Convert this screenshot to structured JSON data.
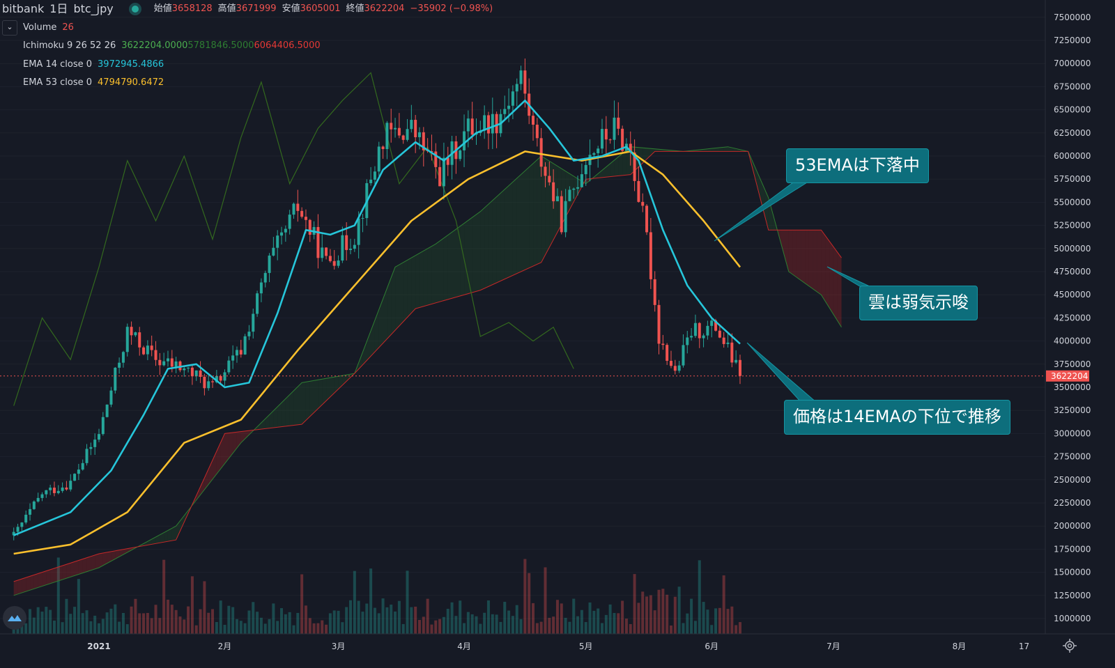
{
  "header": {
    "exchange": "bitbank",
    "interval": "1日",
    "pair": "btc_jpy",
    "ohlc": [
      {
        "label": "始値",
        "value": "3658128"
      },
      {
        "label": "高値",
        "value": "3671999"
      },
      {
        "label": "安値",
        "value": "3605001"
      },
      {
        "label": "終値",
        "value": "3622204"
      }
    ],
    "change": "−35902 (−0.98%)"
  },
  "indicators": [
    {
      "name": "Volume",
      "values": [
        {
          "text": "26",
          "color": "#ef5350"
        }
      ]
    },
    {
      "name": "Ichimoku 9 26 52 26",
      "values": [
        {
          "text": "3622204.0000",
          "color": "#4caf50"
        },
        {
          "text": "5781846.5000",
          "color": "#2e7d32"
        },
        {
          "text": "6064406.5000",
          "color": "#e53935"
        }
      ]
    },
    {
      "name": "EMA 14 close 0",
      "values": [
        {
          "text": "3972945.4866",
          "color": "#26c6da"
        }
      ]
    },
    {
      "name": "EMA 53 close 0",
      "values": [
        {
          "text": "4794790.6472",
          "color": "#fbc02d"
        }
      ]
    }
  ],
  "annotations": [
    {
      "text": "53EMAは下落中"
    },
    {
      "text": "雲は弱気示唆"
    },
    {
      "text": "価格は14EMAの下位で推移"
    }
  ],
  "price_label": "3622204",
  "colors": {
    "background": "#161a25",
    "up": "#26a69a",
    "down": "#ef5350",
    "ema14": "#26c6da",
    "ema53": "#fbc02d",
    "senkou_a": "#2e7d32",
    "senkou_b": "#c62828",
    "chikou": "#33691e",
    "callout": "#0d6e7c"
  },
  "chart_data": {
    "type": "candlestick",
    "title": "",
    "ylim": [
      750000,
      7650000
    ],
    "y_ticks": [
      1000000,
      1250000,
      1500000,
      1750000,
      2000000,
      2250000,
      2500000,
      2750000,
      3000000,
      3250000,
      3500000,
      3750000,
      4000000,
      4250000,
      4500000,
      4750000,
      5000000,
      5250000,
      5500000,
      5750000,
      6000000,
      6250000,
      6500000,
      6750000,
      7000000,
      7250000,
      7500000
    ],
    "x_ticks": [
      {
        "label": "2021",
        "date": "2021-01-01"
      },
      {
        "label": "2月",
        "date": "2021-02-01"
      },
      {
        "label": "3月",
        "date": "2021-03-01"
      },
      {
        "label": "4月",
        "date": "2021-04-01"
      },
      {
        "label": "5月",
        "date": "2021-05-01"
      },
      {
        "label": "6月",
        "date": "2021-06-01"
      },
      {
        "label": "7月",
        "date": "2021-07-01"
      },
      {
        "label": "8月",
        "date": "2021-08-01"
      },
      {
        "label": "17",
        "date": "2021-08-17"
      }
    ],
    "x_range": [
      "2020-12-11",
      "2021-08-22"
    ],
    "last_date": "2021-06-08",
    "last_price": 3622204,
    "ohlc_weekly_anchors": [
      {
        "date": "2020-12-11",
        "close": 1900000
      },
      {
        "date": "2020-12-18",
        "close": 2350000
      },
      {
        "date": "2020-12-25",
        "close": 2470000
      },
      {
        "date": "2021-01-01",
        "close": 3000000
      },
      {
        "date": "2021-01-08",
        "close": 4100000
      },
      {
        "date": "2021-01-15",
        "close": 3800000
      },
      {
        "date": "2021-01-22",
        "close": 3700000
      },
      {
        "date": "2021-01-29",
        "close": 3500000
      },
      {
        "date": "2021-02-05",
        "close": 3900000
      },
      {
        "date": "2021-02-12",
        "close": 4850000
      },
      {
        "date": "2021-02-19",
        "close": 5450000
      },
      {
        "date": "2021-02-26",
        "close": 4850000
      },
      {
        "date": "2021-03-05",
        "close": 5150000
      },
      {
        "date": "2021-03-12",
        "close": 6200000
      },
      {
        "date": "2021-03-19",
        "close": 6300000
      },
      {
        "date": "2021-03-26",
        "close": 5800000
      },
      {
        "date": "2021-04-02",
        "close": 6300000
      },
      {
        "date": "2021-04-09",
        "close": 6400000
      },
      {
        "date": "2021-04-15",
        "close": 6850000
      },
      {
        "date": "2021-04-19",
        "close": 6100000
      },
      {
        "date": "2021-04-25",
        "close": 5300000
      },
      {
        "date": "2021-05-01",
        "close": 6000000
      },
      {
        "date": "2021-05-08",
        "close": 6300000
      },
      {
        "date": "2021-05-12",
        "close": 6050000
      },
      {
        "date": "2021-05-16",
        "close": 5100000
      },
      {
        "date": "2021-05-19",
        "close": 4050000
      },
      {
        "date": "2021-05-23",
        "close": 3650000
      },
      {
        "date": "2021-05-27",
        "close": 4100000
      },
      {
        "date": "2021-06-02",
        "close": 4150000
      },
      {
        "date": "2021-06-05",
        "close": 3900000
      },
      {
        "date": "2021-06-08",
        "close": 3622204
      }
    ],
    "series": [
      {
        "name": "EMA 14 close 0",
        "points": [
          [
            "2020-12-11",
            1900000
          ],
          [
            "2020-12-25",
            2150000
          ],
          [
            "2021-01-04",
            2600000
          ],
          [
            "2021-01-12",
            3200000
          ],
          [
            "2021-01-18",
            3700000
          ],
          [
            "2021-01-25",
            3750000
          ],
          [
            "2021-02-01",
            3500000
          ],
          [
            "2021-02-07",
            3550000
          ],
          [
            "2021-02-14",
            4300000
          ],
          [
            "2021-02-21",
            5200000
          ],
          [
            "2021-02-27",
            5150000
          ],
          [
            "2021-03-05",
            5250000
          ],
          [
            "2021-03-12",
            5850000
          ],
          [
            "2021-03-20",
            6150000
          ],
          [
            "2021-03-27",
            5950000
          ],
          [
            "2021-04-04",
            6250000
          ],
          [
            "2021-04-10",
            6350000
          ],
          [
            "2021-04-16",
            6600000
          ],
          [
            "2021-04-22",
            6300000
          ],
          [
            "2021-04-28",
            5950000
          ],
          [
            "2021-05-05",
            6000000
          ],
          [
            "2021-05-11",
            6100000
          ],
          [
            "2021-05-14",
            5950000
          ],
          [
            "2021-05-20",
            5200000
          ],
          [
            "2021-05-26",
            4600000
          ],
          [
            "2021-06-01",
            4250000
          ],
          [
            "2021-06-08",
            3970000
          ]
        ]
      },
      {
        "name": "EMA 53 close 0",
        "points": [
          [
            "2020-12-11",
            1700000
          ],
          [
            "2020-12-25",
            1800000
          ],
          [
            "2021-01-08",
            2150000
          ],
          [
            "2021-01-22",
            2900000
          ],
          [
            "2021-02-05",
            3150000
          ],
          [
            "2021-02-19",
            3900000
          ],
          [
            "2021-03-05",
            4600000
          ],
          [
            "2021-03-19",
            5300000
          ],
          [
            "2021-04-02",
            5750000
          ],
          [
            "2021-04-16",
            6050000
          ],
          [
            "2021-04-30",
            5950000
          ],
          [
            "2021-05-12",
            6050000
          ],
          [
            "2021-05-20",
            5800000
          ],
          [
            "2021-05-30",
            5300000
          ],
          [
            "2021-06-08",
            4800000
          ]
        ]
      },
      {
        "name": "Senkou A",
        "points": [
          [
            "2020-12-11",
            1250000
          ],
          [
            "2021-01-01",
            1550000
          ],
          [
            "2021-01-20",
            2000000
          ],
          [
            "2021-02-05",
            2900000
          ],
          [
            "2021-02-20",
            3550000
          ],
          [
            "2021-03-05",
            3650000
          ],
          [
            "2021-03-15",
            4800000
          ],
          [
            "2021-03-25",
            5050000
          ],
          [
            "2021-04-05",
            5400000
          ],
          [
            "2021-04-20",
            6000000
          ],
          [
            "2021-05-01",
            5700000
          ],
          [
            "2021-05-12",
            6100000
          ],
          [
            "2021-05-25",
            6050000
          ],
          [
            "2021-06-05",
            6100000
          ],
          [
            "2021-06-10",
            6050000
          ],
          [
            "2021-06-15",
            5550000
          ],
          [
            "2021-06-20",
            4750000
          ],
          [
            "2021-06-28",
            4500000
          ],
          [
            "2021-07-03",
            4150000
          ]
        ]
      },
      {
        "name": "Senkou B",
        "points": [
          [
            "2020-12-11",
            1400000
          ],
          [
            "2021-01-01",
            1700000
          ],
          [
            "2021-01-20",
            1850000
          ],
          [
            "2021-02-01",
            3000000
          ],
          [
            "2021-02-20",
            3100000
          ],
          [
            "2021-03-05",
            3650000
          ],
          [
            "2021-03-20",
            4350000
          ],
          [
            "2021-04-05",
            4550000
          ],
          [
            "2021-04-20",
            4850000
          ],
          [
            "2021-05-01",
            5750000
          ],
          [
            "2021-05-12",
            5800000
          ],
          [
            "2021-05-18",
            6050000
          ],
          [
            "2021-06-10",
            6050000
          ],
          [
            "2021-06-15",
            5200000
          ],
          [
            "2021-06-28",
            5200000
          ],
          [
            "2021-07-03",
            4900000
          ]
        ]
      },
      {
        "name": "Chikou",
        "points": [
          [
            "2020-12-11",
            3300000
          ],
          [
            "2020-12-18",
            4250000
          ],
          [
            "2020-12-25",
            3800000
          ],
          [
            "2021-01-01",
            4800000
          ],
          [
            "2021-01-08",
            5950000
          ],
          [
            "2021-01-15",
            5300000
          ],
          [
            "2021-01-22",
            6000000
          ],
          [
            "2021-01-29",
            5100000
          ],
          [
            "2021-02-05",
            6200000
          ],
          [
            "2021-02-10",
            6800000
          ],
          [
            "2021-02-17",
            5700000
          ],
          [
            "2021-02-24",
            6300000
          ],
          [
            "2021-03-02",
            6600000
          ],
          [
            "2021-03-09",
            6900000
          ],
          [
            "2021-03-16",
            5700000
          ],
          [
            "2021-03-23",
            6100000
          ],
          [
            "2021-03-30",
            5300000
          ],
          [
            "2021-04-05",
            4050000
          ],
          [
            "2021-04-12",
            4200000
          ],
          [
            "2021-04-18",
            4000000
          ],
          [
            "2021-04-23",
            4150000
          ],
          [
            "2021-04-28",
            3700000
          ]
        ]
      }
    ],
    "volume_ylim": [
      0,
      4000
    ],
    "volume_note": "Volume bars shown at bottom; last value 26"
  }
}
